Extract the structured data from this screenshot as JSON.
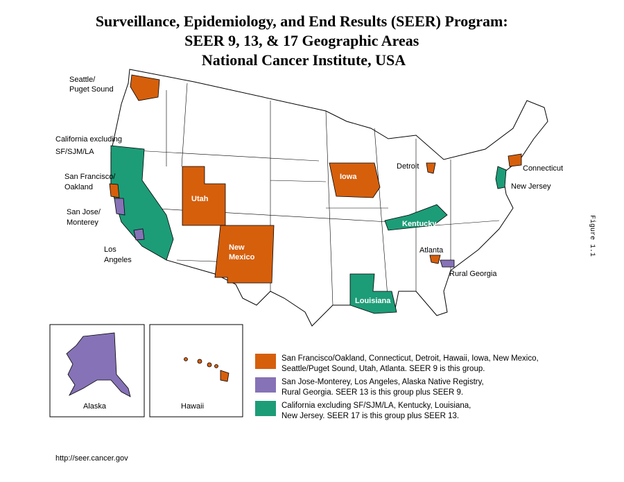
{
  "header": {
    "title": [
      "Surveillance, Epidemiology, and End Results (SEER) Program:",
      "SEER 9, 13, & 17 Geographic Areas",
      "National Cancer Institute, USA"
    ]
  },
  "map_labels": {
    "seattle": [
      "Seattle/",
      "Puget Sound"
    ],
    "california": [
      "California excluding",
      "SF/SJM/LA"
    ],
    "san_francisco": [
      "San Francisco/",
      "Oakland"
    ],
    "san_jose": [
      "San Jose/",
      "Monterey"
    ],
    "los_angeles": [
      "Los",
      "Angeles"
    ],
    "utah": [
      "Utah"
    ],
    "new_mexico": [
      "New",
      "Mexico"
    ],
    "iowa": [
      "Iowa"
    ],
    "detroit": [
      "Detroit"
    ],
    "connecticut": [
      "Connecticut"
    ],
    "new_jersey": [
      "New Jersey"
    ],
    "kentucky": [
      "Kentucky"
    ],
    "atlanta": [
      "Atlanta"
    ],
    "rural_georgia": [
      "Rural Georgia"
    ],
    "louisiana": [
      "Louisiana"
    ],
    "alaska": [
      "Alaska"
    ],
    "hawaii": [
      "Hawaii"
    ]
  },
  "legend": {
    "items": [
      {
        "color": "#d65f0c",
        "lines": [
          "San Francisco/Oakland, Connecticut, Detroit, Hawaii, Iowa, New Mexico,",
          "Seattle/Puget Sound, Utah, Atlanta. SEER 9 is this group."
        ]
      },
      {
        "color": "#8672b6",
        "lines": [
          "San Jose-Monterey, Los Angeles, Alaska Native Registry,",
          "Rural Georgia. SEER 13 is this group plus SEER 9."
        ]
      },
      {
        "color": "#1d9c78",
        "lines": [
          "California excluding SF/SJM/LA, Kentucky, Louisiana,",
          "New Jersey. SEER 17 is this group plus SEER 13."
        ]
      }
    ]
  },
  "footer": {
    "url": "http://seer.cancer.gov"
  },
  "figure_label": "Figure 1.1"
}
